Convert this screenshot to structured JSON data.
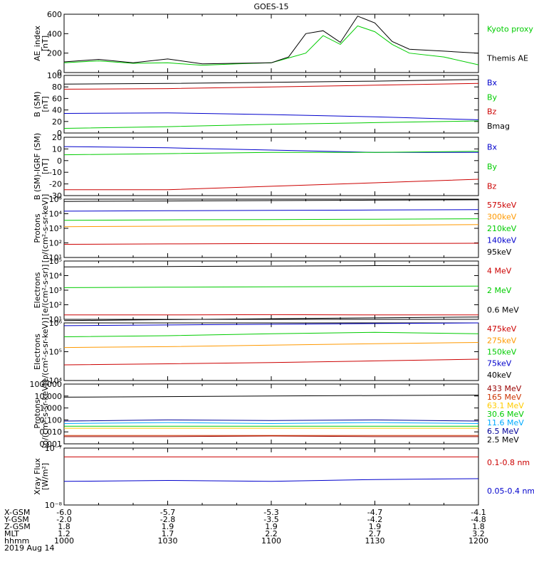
{
  "title": "GOES-15",
  "footer": {
    "rows": [
      {
        "label": "X-GSM",
        "values": [
          "-6.0",
          "-5.7",
          "-5.3",
          "-4.7",
          "-4.1"
        ]
      },
      {
        "label": "Y-GSM",
        "values": [
          "-2.0",
          "-2.8",
          "-3.5",
          "-4.2",
          "-4.8"
        ]
      },
      {
        "label": "Z-GSM",
        "values": [
          "1.8",
          "1.9",
          "1.9",
          "1.9",
          "1.8"
        ]
      },
      {
        "label": "MLT",
        "values": [
          "1.2",
          "1.7",
          "2.2",
          "2.7",
          "3.2"
        ]
      },
      {
        "label": "hhmm",
        "values": [
          "1000",
          "1030",
          "1100",
          "1130",
          "1200"
        ]
      }
    ],
    "date": "2019 Aug 14"
  },
  "chart_data": [
    {
      "type": "line",
      "ylabel": "AE_index\n[nT]",
      "yticks": [
        "0",
        "200",
        "400",
        "600"
      ],
      "ylim": [
        0,
        600
      ],
      "x": [
        "1000",
        "1010",
        "1020",
        "1030",
        "1040",
        "1050",
        "1100",
        "1105",
        "1110",
        "1115",
        "1120",
        "1125",
        "1130",
        "1135",
        "1140",
        "1150",
        "1200"
      ],
      "series": [
        {
          "name": "Kyoto proxy AE",
          "color": "#00cc00",
          "values": [
            100,
            120,
            95,
            100,
            75,
            90,
            100,
            150,
            200,
            380,
            290,
            480,
            420,
            290,
            200,
            160,
            80
          ]
        },
        {
          "name": "Themis AE",
          "color": "#000000",
          "values": [
            110,
            135,
            100,
            140,
            90,
            95,
            100,
            160,
            400,
            430,
            310,
            580,
            510,
            320,
            240,
            220,
            200
          ]
        }
      ]
    },
    {
      "type": "line",
      "ylabel": "B (SM)\n[nT]",
      "yticks": [
        "0",
        "20",
        "40",
        "60",
        "80",
        "100"
      ],
      "ylim": [
        0,
        100
      ],
      "x": [
        "1000",
        "1030",
        "1100",
        "1130",
        "1200"
      ],
      "series": [
        {
          "name": "Bx",
          "color": "#0000cc",
          "values": [
            34,
            35,
            32,
            28,
            23
          ]
        },
        {
          "name": "By",
          "color": "#00cc00",
          "values": [
            8,
            11,
            15,
            18,
            21
          ]
        },
        {
          "name": "Bz",
          "color": "#cc0000",
          "values": [
            76,
            77,
            80,
            83,
            86
          ]
        },
        {
          "name": "Bmag",
          "color": "#000000",
          "values": [
            85,
            86,
            88,
            90,
            93
          ]
        }
      ]
    },
    {
      "type": "line",
      "ylabel": "B (SM)-IGRF (SM)\n[nT]",
      "yticks": [
        "-30",
        "-20",
        "-10",
        "0",
        "10",
        "20"
      ],
      "ylim": [
        -30,
        20
      ],
      "x": [
        "1000",
        "1030",
        "1100",
        "1130",
        "1200"
      ],
      "series": [
        {
          "name": "Bx",
          "color": "#0000cc",
          "values": [
            12,
            11,
            9,
            7,
            7
          ]
        },
        {
          "name": "By",
          "color": "#00cc00",
          "values": [
            5,
            6,
            7,
            7,
            8
          ]
        },
        {
          "name": "Bz",
          "color": "#cc0000",
          "values": [
            -25,
            -25,
            -22,
            -19,
            -16
          ]
        }
      ]
    },
    {
      "type": "line",
      "ylabel": "Protons\n[p/(cm²-s-sr-keV)]",
      "scale": "log",
      "yticks": [
        "10¹",
        "10²",
        "10³",
        "10⁴",
        "10⁵"
      ],
      "ylim": [
        10,
        100000
      ],
      "x": [
        "1000",
        "1030",
        "1100",
        "1130",
        "1200"
      ],
      "series": [
        {
          "name": "575keV",
          "color": "#cc0000",
          "values": [
            80,
            85,
            90,
            90,
            95
          ]
        },
        {
          "name": "300keV",
          "color": "#ff9900",
          "values": [
            1300,
            1400,
            1500,
            1600,
            1800
          ]
        },
        {
          "name": "210keV",
          "color": "#00cc00",
          "values": [
            3500,
            3800,
            4000,
            4200,
            4500
          ]
        },
        {
          "name": "140keV",
          "color": "#0000cc",
          "values": [
            15000,
            16000,
            17000,
            18000,
            19000
          ]
        },
        {
          "name": "95keV",
          "color": "#000000",
          "values": [
            70000,
            75000,
            80000,
            85000,
            90000
          ]
        }
      ]
    },
    {
      "type": "line",
      "ylabel": "Electrons\n[e/(cm²-s-sr)]",
      "scale": "log",
      "yticks": [
        "10¹",
        "10²",
        "10³",
        "10⁴",
        "10⁵"
      ],
      "ylim": [
        10,
        100000
      ],
      "x": [
        "1000",
        "1030",
        "1100",
        "1130",
        "1200"
      ],
      "series": [
        {
          "name": "4 MeV",
          "color": "#cc0000",
          "values": [
            20,
            20,
            21,
            20,
            20
          ]
        },
        {
          "name": "2 MeV",
          "color": "#00cc00",
          "values": [
            1500,
            1600,
            1700,
            1800,
            1900
          ]
        },
        {
          "name": "0.6 MeV",
          "color": "#000000",
          "values": [
            40000,
            42000,
            45000,
            48000,
            50000
          ]
        }
      ]
    },
    {
      "type": "line",
      "ylabel": "Electrons\n[e/(cm²-s-sr-keV)]",
      "scale": "log",
      "yticks": [
        "10⁴",
        "10⁵",
        "10⁶"
      ],
      "ylim": [
        10000,
        1000000
      ],
      "x": [
        "1000",
        "1030",
        "1100",
        "1130",
        "1200"
      ],
      "series": [
        {
          "name": "475keV",
          "color": "#cc0000",
          "values": [
            35000,
            38000,
            42000,
            48000,
            55000
          ]
        },
        {
          "name": "275keV",
          "color": "#ff9900",
          "values": [
            140000,
            150000,
            170000,
            190000,
            210000
          ]
        },
        {
          "name": "150keV",
          "color": "#00cc00",
          "values": [
            330000,
            360000,
            420000,
            470000,
            420000
          ]
        },
        {
          "name": "75keV",
          "color": "#0000cc",
          "values": [
            800000,
            850000,
            900000,
            950000,
            1000000
          ]
        },
        {
          "name": "40keV",
          "color": "#000000",
          "values": [
            1200000,
            1300000,
            1400000,
            1500000,
            1600000
          ]
        }
      ]
    },
    {
      "type": "line",
      "ylabel": "Protons\n[p/(cm²-s-sr-keV)]",
      "scale": "log",
      "yticks": [
        "0.001",
        "0.010",
        "0.100",
        "1.000",
        "10.000",
        "100.000"
      ],
      "ylim": [
        0.001,
        100
      ],
      "x": [
        "1000",
        "1030",
        "1100",
        "1130",
        "1200"
      ],
      "series": [
        {
          "name": "433 MeV",
          "color": "#990000",
          "values": [
            0.004,
            0.004,
            0.0045,
            0.004,
            0.004
          ]
        },
        {
          "name": "165 MeV",
          "color": "#cc3300",
          "values": [
            0.005,
            0.005,
            0.005,
            0.005,
            0.005
          ]
        },
        {
          "name": "63.1 MeV",
          "color": "#ffcc00",
          "values": [
            0.02,
            0.02,
            0.02,
            0.02,
            0.02
          ]
        },
        {
          "name": "30.6 MeV",
          "color": "#00cc00",
          "values": [
            0.03,
            0.03,
            0.03,
            0.03,
            0.03
          ]
        },
        {
          "name": "11.6 MeV",
          "color": "#00aaff",
          "values": [
            0.05,
            0.06,
            0.05,
            0.06,
            0.05
          ]
        },
        {
          "name": "6.5 MeV",
          "color": "#000099",
          "values": [
            0.08,
            0.1,
            0.09,
            0.1,
            0.08
          ]
        },
        {
          "name": "2.5 MeV",
          "color": "#000000",
          "values": [
            8,
            9,
            10,
            11,
            12
          ]
        }
      ]
    },
    {
      "type": "line",
      "ylabel": "Xray Flux\n[W/m²]",
      "scale": "log",
      "yticks": [
        "10⁻⁸",
        "10⁻⁷"
      ],
      "ylim": [
        1e-08,
        1e-07
      ],
      "x": [
        "1000",
        "1030",
        "1100",
        "1130",
        "1200"
      ],
      "series": [
        {
          "name": "0.1-0.8 nm",
          "color": "#cc0000",
          "values": [
            7e-08,
            7e-08,
            7e-08,
            7e-08,
            7e-08
          ]
        },
        {
          "name": "0.05-0.4 nm",
          "color": "#0000cc",
          "values": [
            2.6e-08,
            2.7e-08,
            2.6e-08,
            2.8e-08,
            2.9e-08
          ]
        }
      ]
    }
  ],
  "x_axis": {
    "xlim": [
      "1000",
      "1200"
    ],
    "ticks": [
      "1000",
      "1030",
      "1100",
      "1130",
      "1200"
    ]
  }
}
